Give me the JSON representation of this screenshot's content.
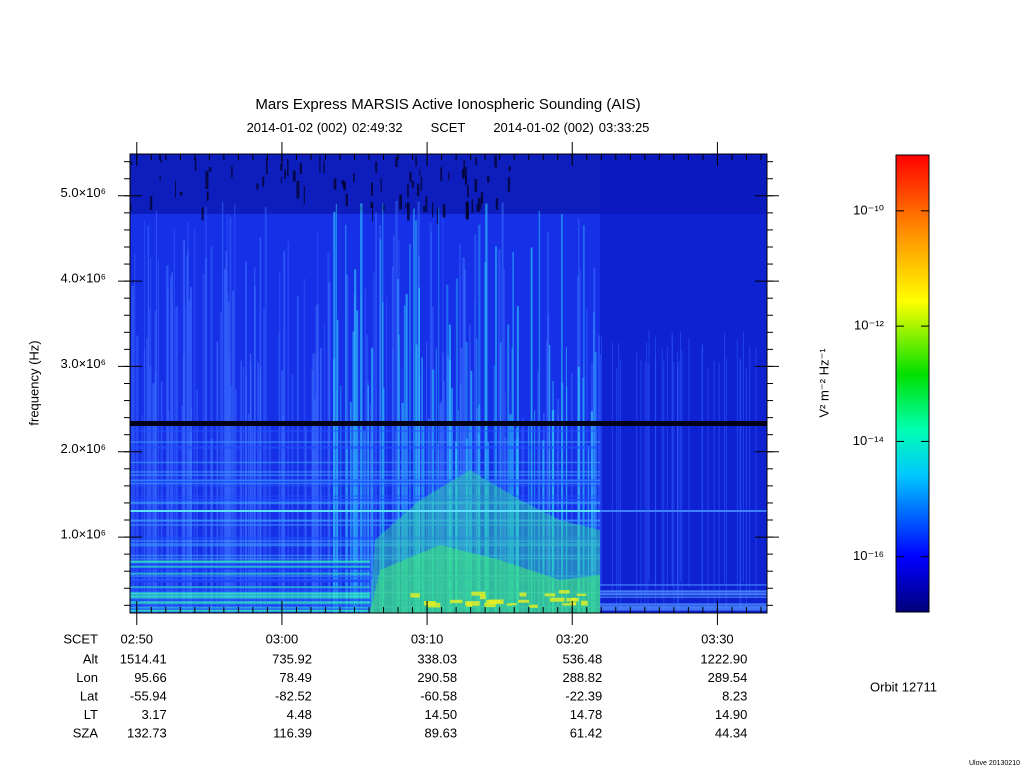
{
  "chart_data": {
    "type": "spectrogram",
    "title": "Mars Express MARSIS Active Ionospheric Sounding (AIS)",
    "subtitle": {
      "start_date": "2014-01-02 (002)",
      "start_time": "02:49:32",
      "label": "SCET",
      "end_date": "2014-01-02 (002)",
      "end_time": "03:33:25"
    },
    "y_label": "frequency (Hz)",
    "ylim": [
      110000,
      5490000
    ],
    "yticks": [
      {
        "value": 1000000,
        "label": "1.0×10⁶"
      },
      {
        "value": 2000000,
        "label": "2.0×10⁶"
      },
      {
        "value": 3000000,
        "label": "3.0×10⁶"
      },
      {
        "value": 4000000,
        "label": "4.0×10⁶"
      },
      {
        "value": 5000000,
        "label": "5.0×10⁶"
      }
    ],
    "xticks": [
      "02:50",
      "03:00",
      "03:10",
      "03:20",
      "03:30"
    ],
    "colorbar": {
      "label": "V² m⁻² Hz⁻¹",
      "log_scale": true,
      "lim": [
        1.1e-17,
        9.3e-10
      ],
      "ticks": [
        {
          "value": 1e-10,
          "label": "10⁻¹⁰"
        },
        {
          "value": 1e-12,
          "label": "10⁻¹²"
        },
        {
          "value": 1e-14,
          "label": "10⁻¹⁴"
        },
        {
          "value": 1e-16,
          "label": "10⁻¹⁶"
        }
      ]
    },
    "ephemeris": {
      "time_label": "SCET",
      "rows": [
        {
          "label": "Alt",
          "values": [
            "1514.41",
            "735.92",
            "338.03",
            "536.48",
            "1222.90"
          ]
        },
        {
          "label": "Lon",
          "values": [
            "95.66",
            "78.49",
            "290.58",
            "288.82",
            "289.54"
          ]
        },
        {
          "label": "Lat",
          "values": [
            "-55.94",
            "-82.52",
            "-60.58",
            "-22.39",
            "8.23"
          ]
        },
        {
          "label": "LT",
          "values": [
            "3.17",
            "4.48",
            "14.50",
            "14.78",
            "14.90"
          ]
        },
        {
          "label": "SZA",
          "values": [
            "132.73",
            "116.39",
            "89.63",
            "61.42",
            "44.34"
          ]
        }
      ]
    },
    "orbit": "Orbit 12711",
    "footer": "Ulove 20130210"
  }
}
